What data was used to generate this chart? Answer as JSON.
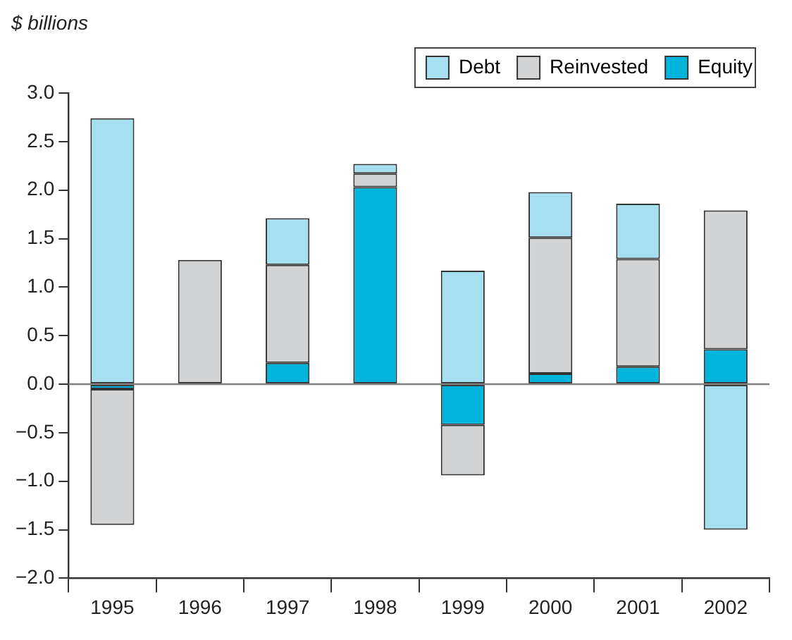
{
  "chart_data": {
    "type": "bar",
    "ylabel": "$ billions",
    "stacked": true,
    "categories": [
      "1995",
      "1996",
      "1997",
      "1998",
      "1999",
      "2000",
      "2001",
      "2002"
    ],
    "series": [
      {
        "name": "Equity",
        "color": "#00b4dc",
        "values": [
          -0.05,
          0,
          0.22,
          2.03,
          -0.42,
          0.11,
          0.18,
          0.36
        ]
      },
      {
        "name": "Reinvested",
        "color": "#d2d3d5",
        "values": [
          -1.4,
          1.28,
          1.01,
          0.14,
          -0.52,
          1.4,
          1.11,
          1.43
        ]
      },
      {
        "name": "Debt",
        "color": "#a6dff0",
        "values": [
          2.74,
          0,
          0.48,
          0.1,
          1.17,
          0.47,
          0.57,
          -1.5
        ]
      }
    ],
    "ylim": [
      -2,
      3
    ],
    "yticks": [
      {
        "value": -2,
        "label": "−2.0"
      },
      {
        "value": -1.5,
        "label": "−1.5"
      },
      {
        "value": -1,
        "label": "−1.0"
      },
      {
        "value": -0.5,
        "label": "−0.5"
      },
      {
        "value": 0,
        "label": "0.0"
      },
      {
        "value": 0.5,
        "label": "0.5"
      },
      {
        "value": 1,
        "label": "1.0"
      },
      {
        "value": 1.5,
        "label": "1.5"
      },
      {
        "value": 2,
        "label": "2.0"
      },
      {
        "value": 2.5,
        "label": "2.5"
      },
      {
        "value": 3,
        "label": "3.0"
      }
    ],
    "ref_lines": [
      {
        "axis": "y",
        "value": 0,
        "color": "#808080"
      }
    ],
    "grid": false,
    "legend": "top right"
  }
}
